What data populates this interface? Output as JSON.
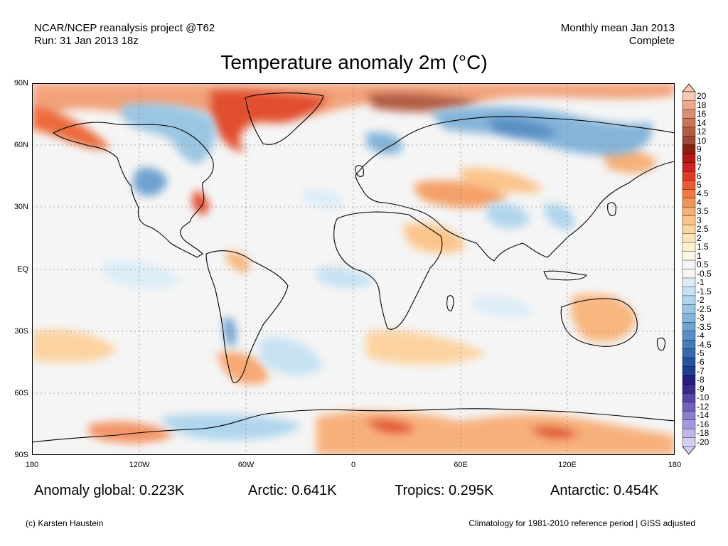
{
  "header": {
    "source": "NCAR/NCEP reanalysis project @T62",
    "run": "Run: 31 Jan 2013 18z",
    "period": "Monthly mean Jan 2013",
    "status": "Complete"
  },
  "title": "Temperature anomaly 2m (°C)",
  "axes": {
    "y_labels": [
      "90N",
      "60N",
      "30N",
      "EQ",
      "30S",
      "60S",
      "90S"
    ],
    "x_labels": [
      "180",
      "120W",
      "60W",
      "0",
      "60E",
      "120E",
      "180"
    ]
  },
  "colorbar": {
    "labels": [
      "20",
      "18",
      "16",
      "14",
      "12",
      "10",
      "9",
      "8",
      "7",
      "6",
      "5",
      "4.5",
      "4",
      "3.5",
      "3",
      "2.5",
      "2",
      "1.5",
      "1",
      "0.5",
      "-0.5",
      "-1",
      "-1.5",
      "-2",
      "-2.5",
      "-3",
      "-3.5",
      "-4",
      "-4.5",
      "-5",
      "-6",
      "-7",
      "-8",
      "-9",
      "-10",
      "-12",
      "-14",
      "-16",
      "-18",
      "-20"
    ],
    "colors": [
      "#f8c9b4",
      "#eba98e",
      "#dc8c70",
      "#c87456",
      "#b25d44",
      "#9c4834",
      "#8a1d0c",
      "#b21717",
      "#cd2020",
      "#de3d24",
      "#ec5a32",
      "#f17843",
      "#f5945a",
      "#f8ae72",
      "#fbc48b",
      "#fcd7a2",
      "#fde5b9",
      "#fef0d0",
      "#fff8e6",
      "#f5f5f5",
      "#f5f5f5",
      "#dcedf7",
      "#c7e2f2",
      "#b0d5ec",
      "#9bc6e3",
      "#84b4d9",
      "#6ea2cf",
      "#598fc4",
      "#467cb8",
      "#346aad",
      "#2752a0",
      "#1f3d91",
      "#261d7c",
      "#3a2a8e",
      "#5a45a8",
      "#7560bc",
      "#8e7ccd",
      "#a798db",
      "#bdb4e7",
      "#d3cff1"
    ]
  },
  "stats": {
    "global": "Anomaly global: 0.223K",
    "arctic": "Arctic: 0.641K",
    "tropics": "Tropics: 0.295K",
    "antarctic": "Antarctic: 0.454K"
  },
  "footer": {
    "credit": "(c) Karsten Haustein",
    "note": "Climatology for 1981-2010 reference period | GISS adjusted"
  }
}
